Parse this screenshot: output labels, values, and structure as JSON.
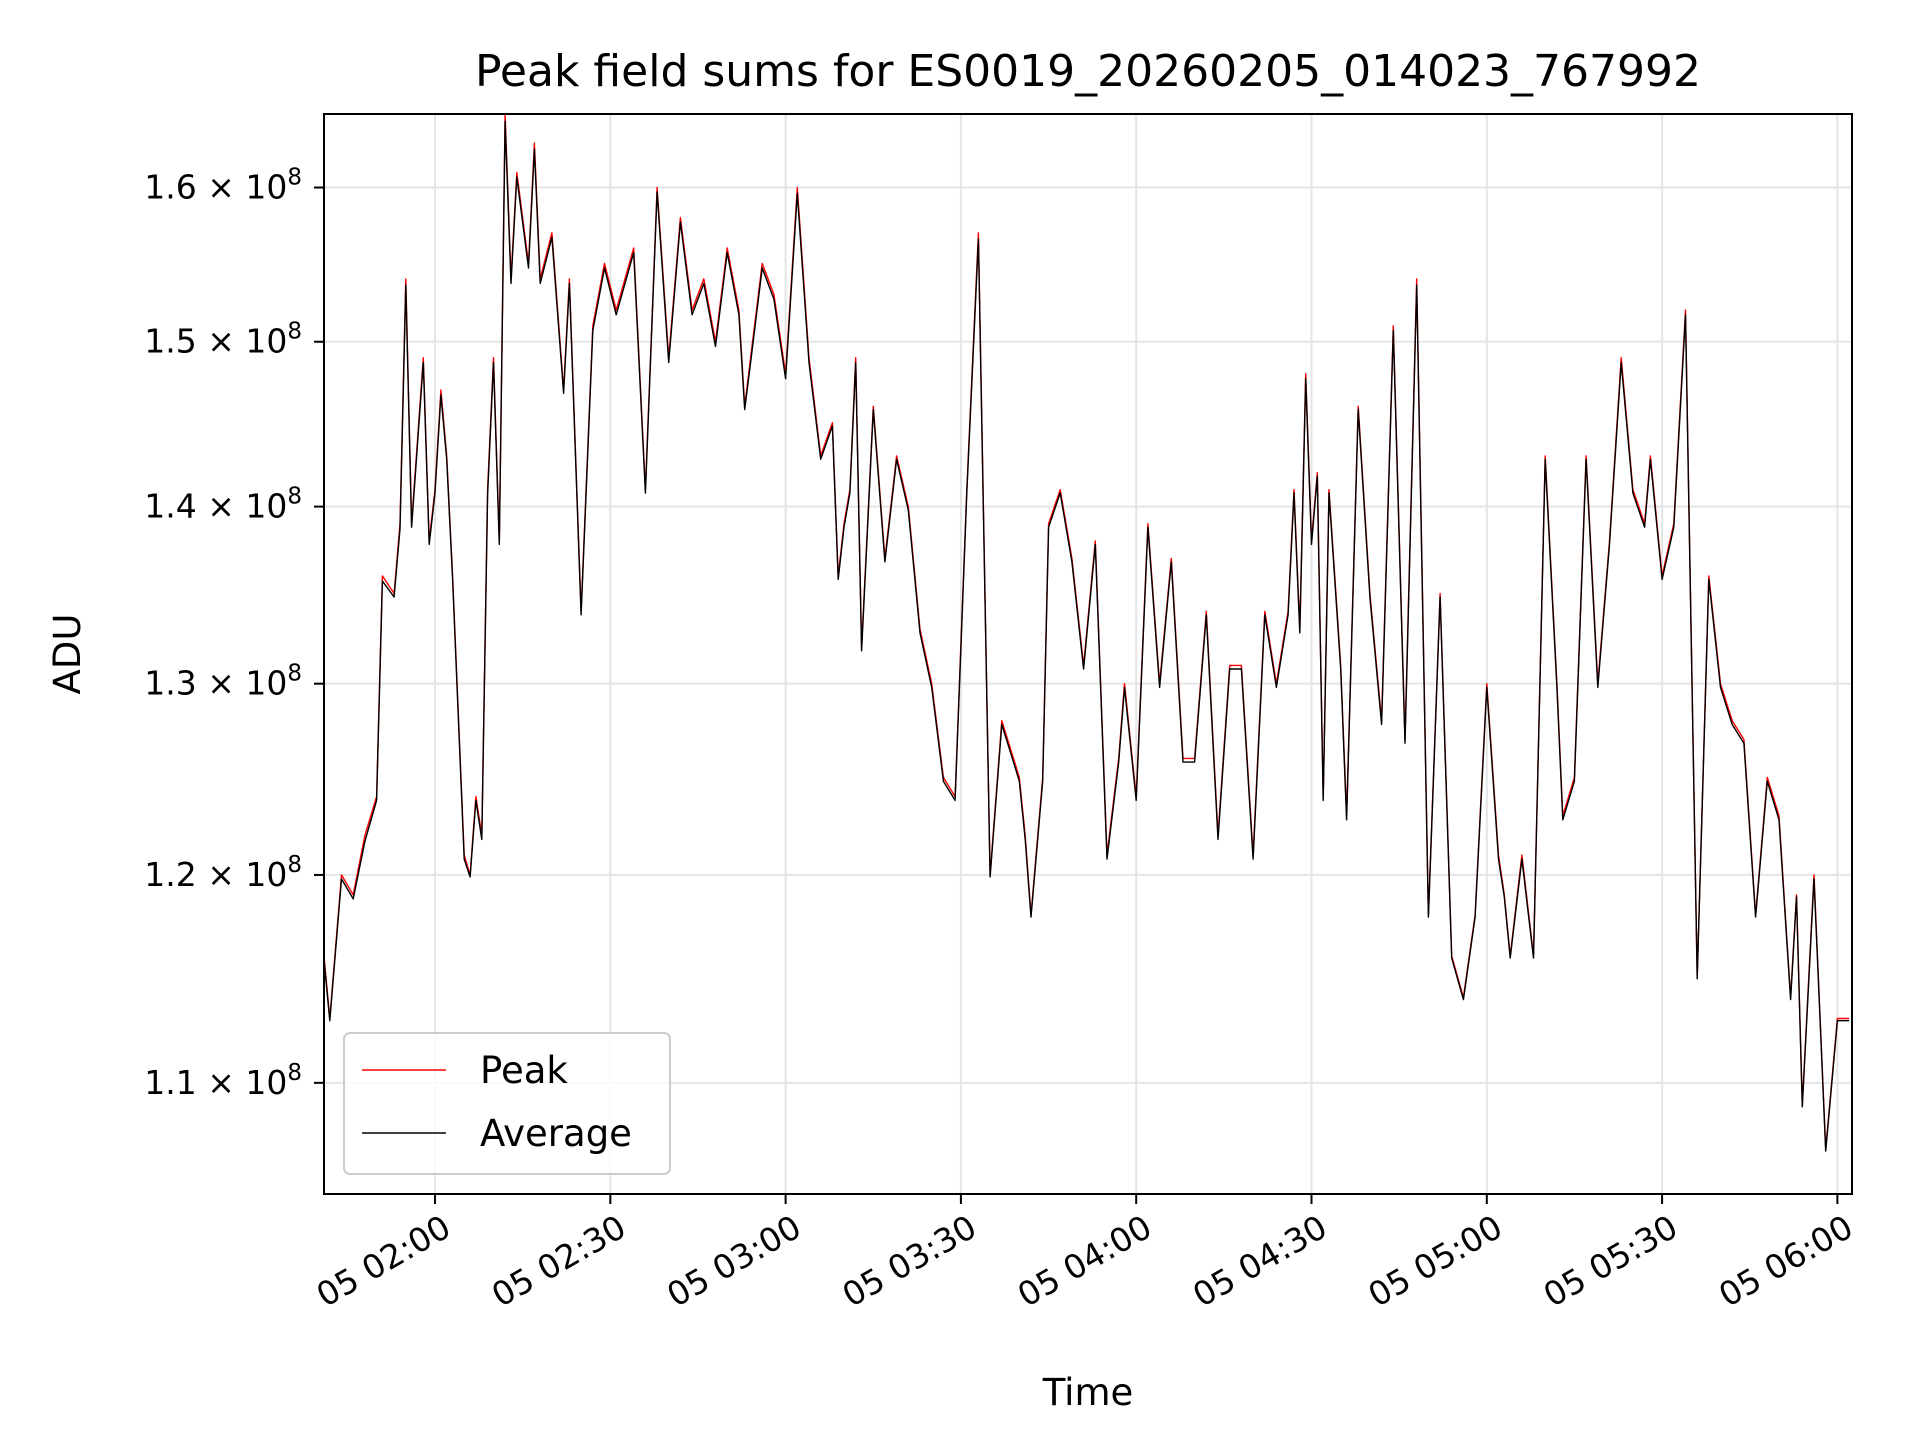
{
  "chart_data": {
    "type": "line",
    "title": "Peak field sums for ES0019_20260205_014023_767992",
    "xlabel": "Time",
    "ylabel": "ADU",
    "yscale": "log",
    "grid": true,
    "legend_placement": "lower-left",
    "xlim": [
      "2026-02-05 01:41:00",
      "2026-02-05 06:02:30"
    ],
    "ylim": [
      105000000,
      165000000
    ],
    "x_ticks": [
      {
        "value": "2026-02-05 02:00",
        "label": "05 02:00"
      },
      {
        "value": "2026-02-05 02:30",
        "label": "05 02:30"
      },
      {
        "value": "2026-02-05 03:00",
        "label": "05 03:00"
      },
      {
        "value": "2026-02-05 03:30",
        "label": "05 03:30"
      },
      {
        "value": "2026-02-05 04:00",
        "label": "05 04:00"
      },
      {
        "value": "2026-02-05 04:30",
        "label": "05 04:30"
      },
      {
        "value": "2026-02-05 05:00",
        "label": "05 05:00"
      },
      {
        "value": "2026-02-05 05:30",
        "label": "05 05:30"
      },
      {
        "value": "2026-02-05 06:00",
        "label": "05 06:00"
      }
    ],
    "y_ticks": [
      {
        "value": 110000000,
        "mantissa": "1.1",
        "exponent": "8"
      },
      {
        "value": 120000000,
        "mantissa": "1.2",
        "exponent": "8"
      },
      {
        "value": 130000000,
        "mantissa": "1.3",
        "exponent": "8"
      },
      {
        "value": 140000000,
        "mantissa": "1.4",
        "exponent": "8"
      },
      {
        "value": 150000000,
        "mantissa": "1.5",
        "exponent": "8"
      },
      {
        "value": 160000000,
        "mantissa": "1.6",
        "exponent": "8"
      }
    ],
    "series": [
      {
        "name": "Peak",
        "color": "#ff0000",
        "x": [
          "2026-02-05 01:41",
          "2026-02-05 01:42",
          "2026-02-05 01:44",
          "2026-02-05 01:46",
          "2026-02-05 01:48",
          "2026-02-05 01:50",
          "2026-02-05 01:51",
          "2026-02-05 01:53",
          "2026-02-05 01:54",
          "2026-02-05 01:55",
          "2026-02-05 01:56",
          "2026-02-05 01:58",
          "2026-02-05 01:59",
          "2026-02-05 02:00",
          "2026-02-05 02:01",
          "2026-02-05 02:02",
          "2026-02-05 02:03",
          "2026-02-05 02:05",
          "2026-02-05 02:06",
          "2026-02-05 02:07",
          "2026-02-05 02:08",
          "2026-02-05 02:09",
          "2026-02-05 02:10",
          "2026-02-05 02:11",
          "2026-02-05 02:12",
          "2026-02-05 02:13",
          "2026-02-05 02:14",
          "2026-02-05 02:16",
          "2026-02-05 02:17",
          "2026-02-05 02:18",
          "2026-02-05 02:20",
          "2026-02-05 02:22",
          "2026-02-05 02:23",
          "2026-02-05 02:25",
          "2026-02-05 02:27",
          "2026-02-05 02:29",
          "2026-02-05 02:31",
          "2026-02-05 02:34",
          "2026-02-05 02:36",
          "2026-02-05 02:38",
          "2026-02-05 02:40",
          "2026-02-05 02:42",
          "2026-02-05 02:44",
          "2026-02-05 02:46",
          "2026-02-05 02:48",
          "2026-02-05 02:50",
          "2026-02-05 02:52",
          "2026-02-05 02:53",
          "2026-02-05 02:54",
          "2026-02-05 02:56",
          "2026-02-05 02:58",
          "2026-02-05 03:00",
          "2026-02-05 03:02",
          "2026-02-05 03:04",
          "2026-02-05 03:06",
          "2026-02-05 03:08",
          "2026-02-05 03:09",
          "2026-02-05 03:10",
          "2026-02-05 03:11",
          "2026-02-05 03:12",
          "2026-02-05 03:13",
          "2026-02-05 03:15",
          "2026-02-05 03:17",
          "2026-02-05 03:19",
          "2026-02-05 03:21",
          "2026-02-05 03:23",
          "2026-02-05 03:25",
          "2026-02-05 03:27",
          "2026-02-05 03:29",
          "2026-02-05 03:31",
          "2026-02-05 03:33",
          "2026-02-05 03:35",
          "2026-02-05 03:37",
          "2026-02-05 03:39",
          "2026-02-05 03:40",
          "2026-02-05 03:41",
          "2026-02-05 03:42",
          "2026-02-05 03:44",
          "2026-02-05 03:45",
          "2026-02-05 03:47",
          "2026-02-05 03:49",
          "2026-02-05 03:51",
          "2026-02-05 03:53",
          "2026-02-05 03:55",
          "2026-02-05 03:57",
          "2026-02-05 03:58",
          "2026-02-05 04:00",
          "2026-02-05 04:02",
          "2026-02-05 04:04",
          "2026-02-05 04:06",
          "2026-02-05 04:08",
          "2026-02-05 04:10",
          "2026-02-05 04:12",
          "2026-02-05 04:14",
          "2026-02-05 04:16",
          "2026-02-05 04:18",
          "2026-02-05 04:20",
          "2026-02-05 04:22",
          "2026-02-05 04:24",
          "2026-02-05 04:26",
          "2026-02-05 04:27",
          "2026-02-05 04:28",
          "2026-02-05 04:29",
          "2026-02-05 04:30",
          "2026-02-05 04:31",
          "2026-02-05 04:32",
          "2026-02-05 04:33",
          "2026-02-05 04:35",
          "2026-02-05 04:36",
          "2026-02-05 04:38",
          "2026-02-05 04:40",
          "2026-02-05 04:42",
          "2026-02-05 04:44",
          "2026-02-05 04:46",
          "2026-02-05 04:48",
          "2026-02-05 04:50",
          "2026-02-05 04:52",
          "2026-02-05 04:54",
          "2026-02-05 04:56",
          "2026-02-05 04:58",
          "2026-02-05 05:00",
          "2026-02-05 05:02",
          "2026-02-05 05:03",
          "2026-02-05 05:04",
          "2026-02-05 05:06",
          "2026-02-05 05:08",
          "2026-02-05 05:10",
          "2026-02-05 05:12",
          "2026-02-05 05:13",
          "2026-02-05 05:15",
          "2026-02-05 05:17",
          "2026-02-05 05:19",
          "2026-02-05 05:21",
          "2026-02-05 05:23",
          "2026-02-05 05:25",
          "2026-02-05 05:27",
          "2026-02-05 05:28",
          "2026-02-05 05:30",
          "2026-02-05 05:32",
          "2026-02-05 05:34",
          "2026-02-05 05:36",
          "2026-02-05 05:38",
          "2026-02-05 05:40",
          "2026-02-05 05:42",
          "2026-02-05 05:44",
          "2026-02-05 05:46",
          "2026-02-05 05:48",
          "2026-02-05 05:50",
          "2026-02-05 05:52",
          "2026-02-05 05:53",
          "2026-02-05 05:54",
          "2026-02-05 05:56",
          "2026-02-05 05:58",
          "2026-02-05 06:00",
          "2026-02-05 06:02"
        ],
        "y": [
          116000000,
          113000000,
          120000000,
          119000000,
          122000000,
          124000000,
          136000000,
          135000000,
          139000000,
          154000000,
          139000000,
          149000000,
          138000000,
          141000000,
          147000000,
          143000000,
          136000000,
          121000000,
          120000000,
          124000000,
          122000000,
          141000000,
          149000000,
          138000000,
          165000000,
          154000000,
          161000000,
          155000000,
          163000000,
          154000000,
          157000000,
          147000000,
          154000000,
          134000000,
          151000000,
          155000000,
          152000000,
          156000000,
          141000000,
          160000000,
          149000000,
          158000000,
          152000000,
          154000000,
          150000000,
          156000000,
          152000000,
          146000000,
          149000000,
          155000000,
          153000000,
          148000000,
          160000000,
          149000000,
          143000000,
          145000000,
          136000000,
          139000000,
          141000000,
          149000000,
          132000000,
          146000000,
          137000000,
          143000000,
          140000000,
          133000000,
          130000000,
          125000000,
          124000000,
          141000000,
          157000000,
          120000000,
          128000000,
          126000000,
          125000000,
          122000000,
          118000000,
          125000000,
          139000000,
          141000000,
          137000000,
          131000000,
          138000000,
          121000000,
          126000000,
          130000000,
          124000000,
          139000000,
          130000000,
          137000000,
          126000000,
          126000000,
          134000000,
          122000000,
          131000000,
          131000000,
          121000000,
          134000000,
          130000000,
          134000000,
          141000000,
          133000000,
          148000000,
          138000000,
          142000000,
          124000000,
          141000000,
          131000000,
          123000000,
          146000000,
          135000000,
          128000000,
          151000000,
          127000000,
          154000000,
          118000000,
          135000000,
          116000000,
          114000000,
          118000000,
          130000000,
          121000000,
          119000000,
          116000000,
          121000000,
          116000000,
          143000000,
          130000000,
          123000000,
          125000000,
          143000000,
          130000000,
          138000000,
          149000000,
          141000000,
          139000000,
          143000000,
          136000000,
          139000000,
          152000000,
          115000000,
          136000000,
          130000000,
          128000000,
          127000000,
          118000000,
          125000000,
          123000000,
          114000000,
          119000000,
          109000000,
          120000000,
          107000000,
          113000000,
          113000000
        ],
        "width": 1.4
      },
      {
        "name": "Average",
        "color": "#000000",
        "x": [
          "2026-02-05 01:41",
          "2026-02-05 01:42",
          "2026-02-05 01:44",
          "2026-02-05 01:46",
          "2026-02-05 01:48",
          "2026-02-05 01:50",
          "2026-02-05 01:51",
          "2026-02-05 01:53",
          "2026-02-05 01:54",
          "2026-02-05 01:55",
          "2026-02-05 01:56",
          "2026-02-05 01:58",
          "2026-02-05 01:59",
          "2026-02-05 02:00",
          "2026-02-05 02:01",
          "2026-02-05 02:02",
          "2026-02-05 02:03",
          "2026-02-05 02:05",
          "2026-02-05 02:06",
          "2026-02-05 02:07",
          "2026-02-05 02:08",
          "2026-02-05 02:09",
          "2026-02-05 02:10",
          "2026-02-05 02:11",
          "2026-02-05 02:12",
          "2026-02-05 02:13",
          "2026-02-05 02:14",
          "2026-02-05 02:16",
          "2026-02-05 02:17",
          "2026-02-05 02:18",
          "2026-02-05 02:20",
          "2026-02-05 02:22",
          "2026-02-05 02:23",
          "2026-02-05 02:25",
          "2026-02-05 02:27",
          "2026-02-05 02:29",
          "2026-02-05 02:31",
          "2026-02-05 02:34",
          "2026-02-05 02:36",
          "2026-02-05 02:38",
          "2026-02-05 02:40",
          "2026-02-05 02:42",
          "2026-02-05 02:44",
          "2026-02-05 02:46",
          "2026-02-05 02:48",
          "2026-02-05 02:50",
          "2026-02-05 02:52",
          "2026-02-05 02:53",
          "2026-02-05 02:54",
          "2026-02-05 02:56",
          "2026-02-05 02:58",
          "2026-02-05 03:00",
          "2026-02-05 03:02",
          "2026-02-05 03:04",
          "2026-02-05 03:06",
          "2026-02-05 03:08",
          "2026-02-05 03:09",
          "2026-02-05 03:10",
          "2026-02-05 03:11",
          "2026-02-05 03:12",
          "2026-02-05 03:13",
          "2026-02-05 03:15",
          "2026-02-05 03:17",
          "2026-02-05 03:19",
          "2026-02-05 03:21",
          "2026-02-05 03:23",
          "2026-02-05 03:25",
          "2026-02-05 03:27",
          "2026-02-05 03:29",
          "2026-02-05 03:31",
          "2026-02-05 03:33",
          "2026-02-05 03:35",
          "2026-02-05 03:37",
          "2026-02-05 03:39",
          "2026-02-05 03:40",
          "2026-02-05 03:41",
          "2026-02-05 03:42",
          "2026-02-05 03:44",
          "2026-02-05 03:45",
          "2026-02-05 03:47",
          "2026-02-05 03:49",
          "2026-02-05 03:51",
          "2026-02-05 03:53",
          "2026-02-05 03:55",
          "2026-02-05 03:57",
          "2026-02-05 03:58",
          "2026-02-05 04:00",
          "2026-02-05 04:02",
          "2026-02-05 04:04",
          "2026-02-05 04:06",
          "2026-02-05 04:08",
          "2026-02-05 04:10",
          "2026-02-05 04:12",
          "2026-02-05 04:14",
          "2026-02-05 04:16",
          "2026-02-05 04:18",
          "2026-02-05 04:20",
          "2026-02-05 04:22",
          "2026-02-05 04:24",
          "2026-02-05 04:26",
          "2026-02-05 04:27",
          "2026-02-05 04:28",
          "2026-02-05 04:29",
          "2026-02-05 04:30",
          "2026-02-05 04:31",
          "2026-02-05 04:32",
          "2026-02-05 04:33",
          "2026-02-05 04:35",
          "2026-02-05 04:36",
          "2026-02-05 04:38",
          "2026-02-05 04:40",
          "2026-02-05 04:42",
          "2026-02-05 04:44",
          "2026-02-05 04:46",
          "2026-02-05 04:48",
          "2026-02-05 04:50",
          "2026-02-05 04:52",
          "2026-02-05 04:54",
          "2026-02-05 04:56",
          "2026-02-05 04:58",
          "2026-02-05 05:00",
          "2026-02-05 05:02",
          "2026-02-05 05:03",
          "2026-02-05 05:04",
          "2026-02-05 05:06",
          "2026-02-05 05:08",
          "2026-02-05 05:10",
          "2026-02-05 05:12",
          "2026-02-05 05:13",
          "2026-02-05 05:15",
          "2026-02-05 05:17",
          "2026-02-05 05:19",
          "2026-02-05 05:21",
          "2026-02-05 05:23",
          "2026-02-05 05:25",
          "2026-02-05 05:27",
          "2026-02-05 05:28",
          "2026-02-05 05:30",
          "2026-02-05 05:32",
          "2026-02-05 05:34",
          "2026-02-05 05:36",
          "2026-02-05 05:38",
          "2026-02-05 05:40",
          "2026-02-05 05:42",
          "2026-02-05 05:44",
          "2026-02-05 05:46",
          "2026-02-05 05:48",
          "2026-02-05 05:50",
          "2026-02-05 05:52",
          "2026-02-05 05:53",
          "2026-02-05 05:54",
          "2026-02-05 05:56",
          "2026-02-05 05:58",
          "2026-02-05 06:00",
          "2026-02-05 06:02"
        ],
        "y": [
          115800000,
          112900000,
          119800000,
          118800000,
          121700000,
          123800000,
          135700000,
          134800000,
          138700000,
          153600000,
          138800000,
          148700000,
          137800000,
          140800000,
          146700000,
          142800000,
          135800000,
          120800000,
          119900000,
          123800000,
          121800000,
          140700000,
          148700000,
          137800000,
          164500000,
          153700000,
          160700000,
          154700000,
          162600000,
          153700000,
          156700000,
          146800000,
          153700000,
          133800000,
          150700000,
          154700000,
          151700000,
          155700000,
          140800000,
          159700000,
          148700000,
          157700000,
          151700000,
          153700000,
          149700000,
          155700000,
          151700000,
          145800000,
          148700000,
          154700000,
          152700000,
          147700000,
          159600000,
          148700000,
          142800000,
          144800000,
          135800000,
          138800000,
          140800000,
          148700000,
          131800000,
          145800000,
          136800000,
          142800000,
          139800000,
          132800000,
          129800000,
          124800000,
          123800000,
          140800000,
          156600000,
          119900000,
          127800000,
          125800000,
          124800000,
          121800000,
          117900000,
          124800000,
          138800000,
          140800000,
          136800000,
          130800000,
          137800000,
          120800000,
          125800000,
          129800000,
          123800000,
          138800000,
          129800000,
          136800000,
          125800000,
          125800000,
          133800000,
          121800000,
          130800000,
          130800000,
          120800000,
          133800000,
          129800000,
          133800000,
          140800000,
          132800000,
          147700000,
          137800000,
          141800000,
          123800000,
          140800000,
          130800000,
          122800000,
          145800000,
          134800000,
          127800000,
          150700000,
          126800000,
          153600000,
          117900000,
          134800000,
          115900000,
          113900000,
          117900000,
          129800000,
          120800000,
          118900000,
          115900000,
          120800000,
          115900000,
          142800000,
          129800000,
          122800000,
          124800000,
          142800000,
          129800000,
          137800000,
          148700000,
          140800000,
          138800000,
          142800000,
          135800000,
          138800000,
          151700000,
          114900000,
          135800000,
          129800000,
          127800000,
          126800000,
          117900000,
          124800000,
          122800000,
          113900000,
          118900000,
          108900000,
          119800000,
          106900000,
          112900000,
          112900000
        ],
        "width": 1.4
      }
    ]
  }
}
